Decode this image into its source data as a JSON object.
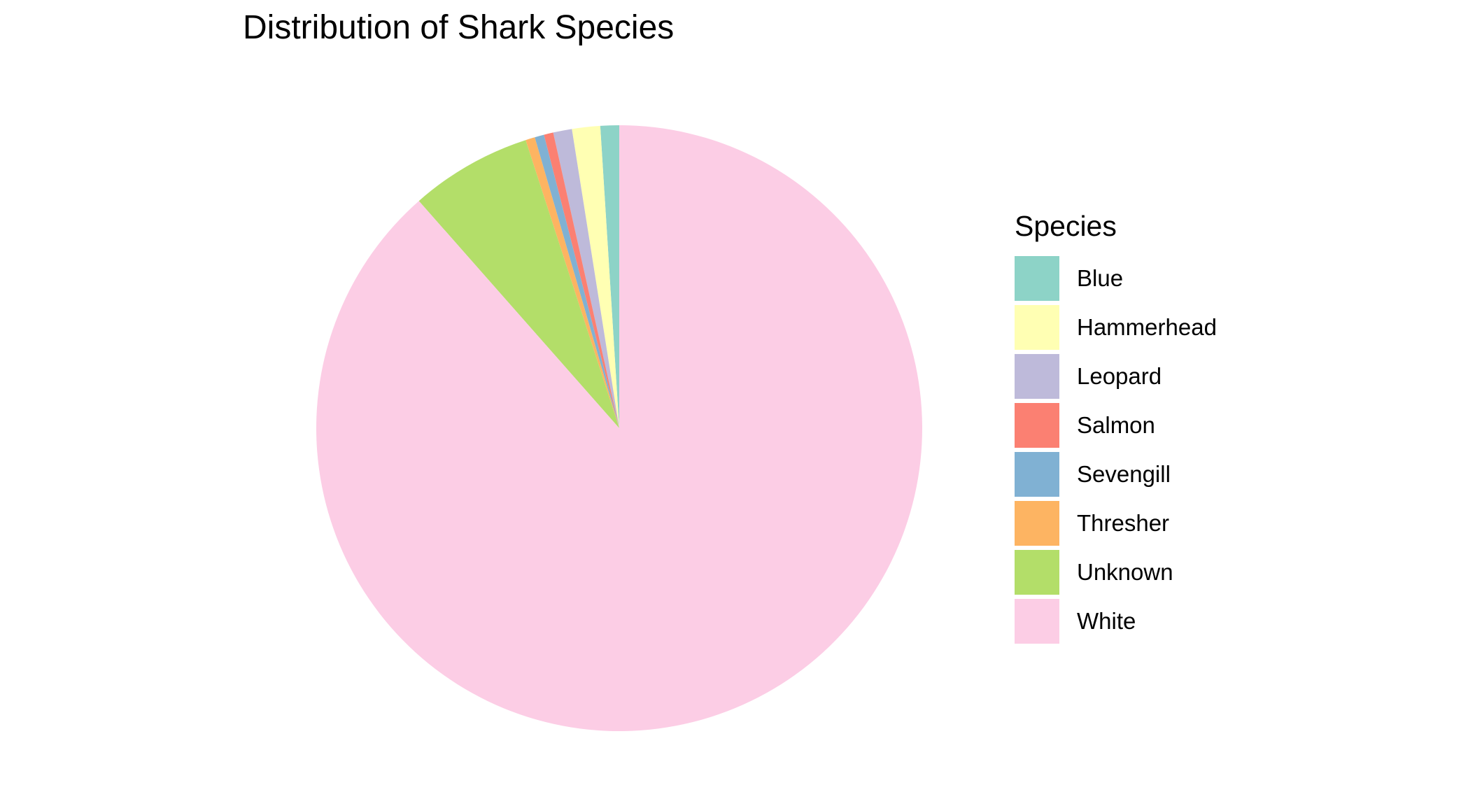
{
  "chart_data": {
    "type": "pie",
    "title": "Distribution of Shark Species",
    "legend_title": "Species",
    "legend_position": "right",
    "start_angle_deg": 0,
    "direction": "counterclockwise",
    "categories": [
      "Blue",
      "Hammerhead",
      "Leopard",
      "Salmon",
      "Sevengill",
      "Thresher",
      "Unknown",
      "White"
    ],
    "values": [
      1.0,
      1.5,
      1.0,
      0.5,
      0.5,
      0.5,
      6.5,
      88.5
    ],
    "colors": [
      "#8DD3C7",
      "#FFFFB3",
      "#BEBADA",
      "#FB8072",
      "#80B1D3",
      "#FDB462",
      "#B3DE69",
      "#FCCDE5"
    ]
  }
}
